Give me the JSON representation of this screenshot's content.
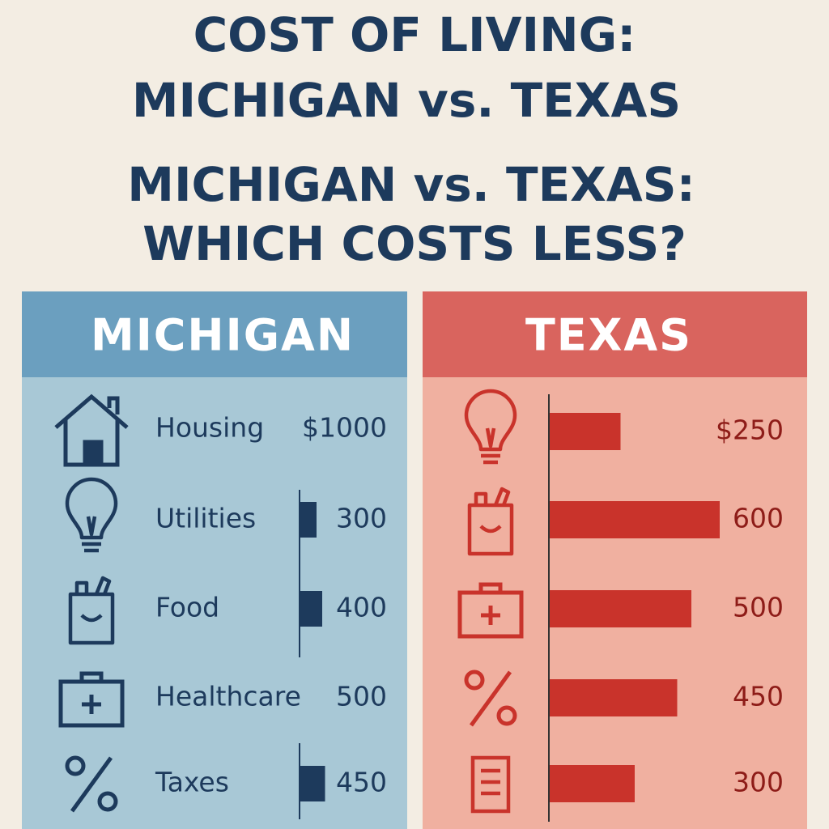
{
  "title": [
    "COST OF LIVING:",
    "MICHIGAN vs. TEXAS"
  ],
  "subtitle": [
    "MICHIGAN vs. TEXAS:",
    "WHICH COSTS LESS?"
  ],
  "michigan": {
    "heading": "MICHIGAN",
    "rows": [
      {
        "label": "Housing",
        "value": 1000,
        "value_label": "$1000",
        "bar": false
      },
      {
        "label": "Utilities",
        "value": 300,
        "bar": true
      },
      {
        "label": "Food",
        "value": 400,
        "bar": true
      },
      {
        "label": "Healthcare",
        "value": 500,
        "bar": false
      },
      {
        "label": "Taxes",
        "value": 450,
        "bar": true
      }
    ]
  },
  "texas": {
    "heading": "TEXAS",
    "rows": [
      {
        "value": 250,
        "value_label": "$250",
        "bar": true
      },
      {
        "value": 600,
        "bar": true
      },
      {
        "value": 500,
        "bar": true
      },
      {
        "value": 450,
        "bar": true
      },
      {
        "value": 300,
        "bar": true
      }
    ]
  }
}
